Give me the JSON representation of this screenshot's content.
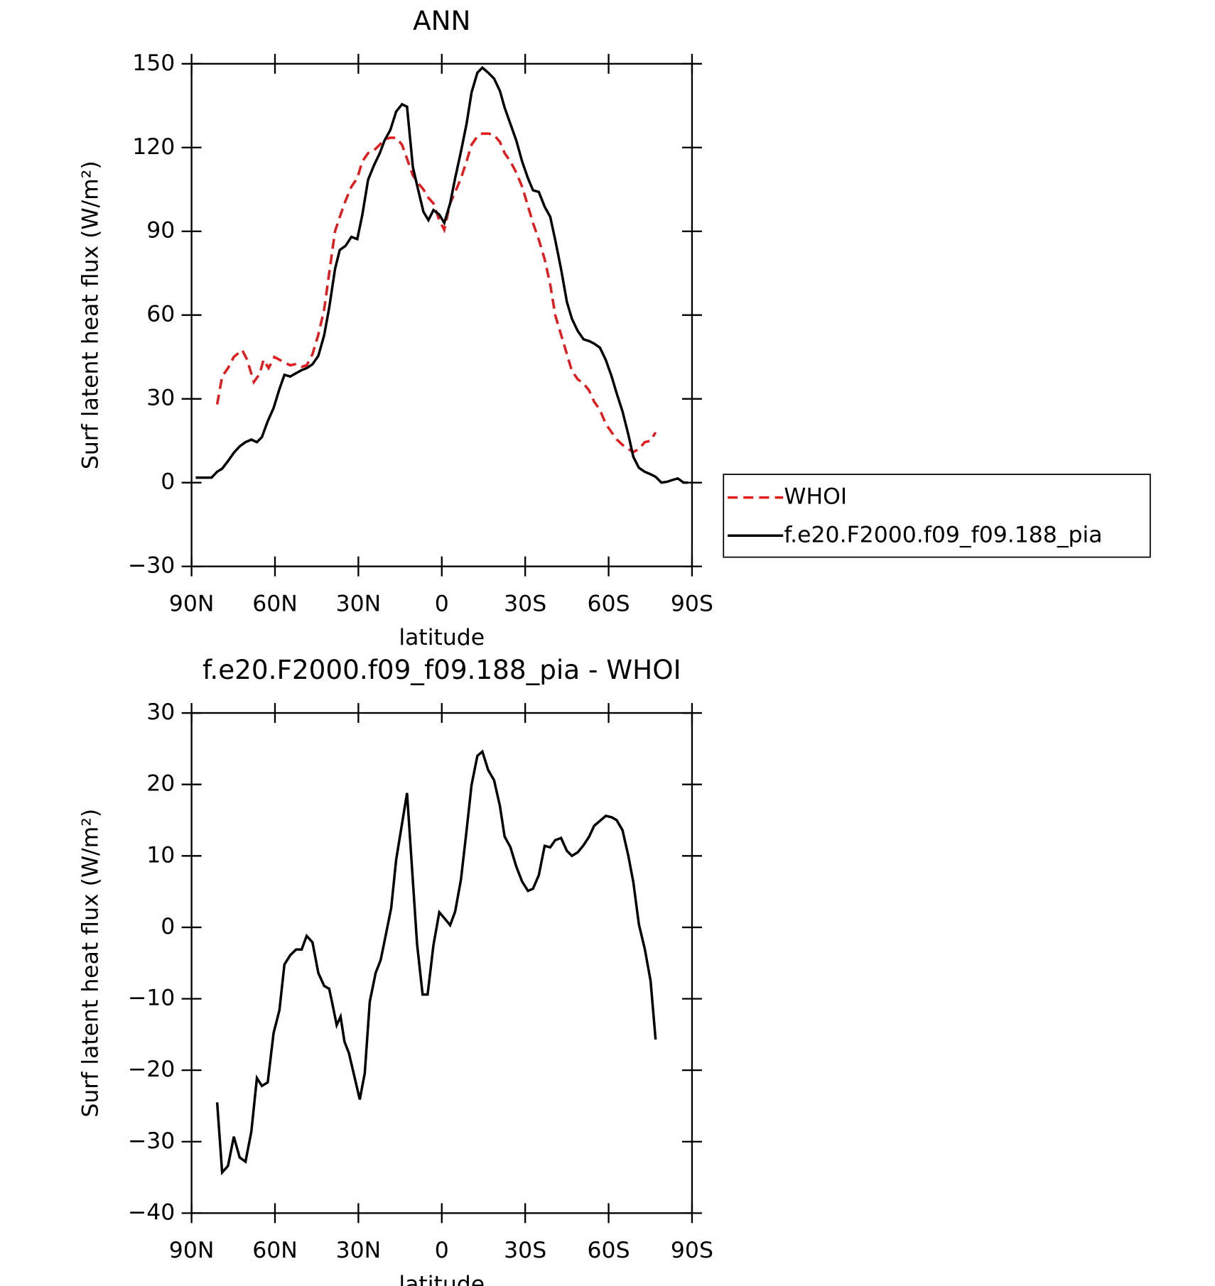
{
  "chart_data": [
    {
      "type": "line",
      "title": "ANN",
      "xlabel": "latitude",
      "ylabel": "Surf latent heat flux (W/m²)",
      "xlim": [
        90,
        -90
      ],
      "xticks": [
        {
          "value": 90,
          "label": "90N"
        },
        {
          "value": 60,
          "label": "60N"
        },
        {
          "value": 30,
          "label": "30N"
        },
        0,
        {
          "value": -30,
          "label": "30S"
        },
        {
          "value": -60,
          "label": "60S"
        },
        {
          "value": -90,
          "label": "90S"
        }
      ],
      "ylim": [
        -30,
        150
      ],
      "yticks": [
        {
          "value": -30,
          "label": "−30"
        },
        0,
        30,
        60,
        90,
        120,
        150
      ],
      "legend": "right",
      "series": [
        {
          "name": "WHOI",
          "color": "#e41a1c",
          "style": "dashed",
          "x": [
            80.8,
            79.0,
            76.9,
            74.8,
            71.8,
            70.0,
            67.6,
            65.5,
            64.1,
            62.3,
            60.2,
            57.5,
            54.5,
            52.4,
            50.4,
            48.6,
            46.5,
            44.4,
            42.3,
            40.5,
            38.4,
            36.4,
            34.6,
            32.5,
            30.4,
            28.6,
            26.5,
            24.4,
            22.3,
            20.6,
            18.5,
            16.4,
            14.3,
            12.5,
            10.4,
            8.3,
            6.6,
            4.8,
            3.0,
            0.9,
            -0.9,
            -3.0,
            -4.8,
            -6.9,
            -8.9,
            -10.7,
            -12.8,
            -14.6,
            -16.7,
            -18.8,
            -20.9,
            -22.6,
            -24.7,
            -26.8,
            -28.9,
            -31.0,
            -32.8,
            -34.9,
            -37.0,
            -39.0,
            -40.8,
            -42.9,
            -45.0,
            -46.8,
            -48.9,
            -51.0,
            -53.0,
            -54.8,
            -56.9,
            -59.0,
            -61.1,
            -62.9,
            -65.0,
            -67.1,
            -68.9,
            -70.9,
            -73.0,
            -75.1,
            -76.9
          ],
          "values": [
            28,
            38,
            41,
            45,
            47.5,
            44,
            36,
            39,
            44,
            41,
            45,
            43.5,
            42,
            42.5,
            41.5,
            42,
            46,
            53,
            62,
            75,
            90,
            96,
            101,
            106,
            109,
            115,
            118,
            119,
            121,
            123,
            123.5,
            123.5,
            121,
            116,
            110,
            107,
            105,
            102,
            100,
            94,
            90.5,
            100,
            104,
            109,
            115,
            121,
            124,
            125,
            125,
            124.5,
            122,
            118,
            115,
            111,
            106,
            99,
            93,
            87,
            80,
            71,
            60,
            53,
            46,
            40,
            37,
            35.5,
            33,
            29,
            26,
            21,
            18,
            15.5,
            13.5,
            12,
            11,
            12,
            14.5,
            15,
            18
          ]
        },
        {
          "name": "f.e20.F2000.f09_f09.188_pia",
          "color": "#000000",
          "style": "solid",
          "x": [
            88.5,
            82.8,
            80.8,
            79.0,
            76.9,
            74.8,
            72.7,
            70.6,
            68.5,
            66.5,
            64.7,
            62.6,
            60.5,
            58.4,
            56.6,
            54.5,
            52.4,
            50.4,
            48.6,
            46.5,
            44.4,
            42.3,
            40.5,
            38.4,
            36.7,
            34.6,
            32.5,
            30.4,
            28.6,
            26.5,
            24.4,
            22.3,
            20.6,
            18.5,
            16.4,
            14.3,
            12.5,
            10.4,
            8.3,
            6.6,
            4.8,
            3.0,
            0.9,
            -0.9,
            -3.0,
            -4.8,
            -6.9,
            -8.9,
            -10.7,
            -12.8,
            -14.6,
            -16.7,
            -18.8,
            -20.9,
            -22.6,
            -24.7,
            -26.8,
            -28.9,
            -31.0,
            -32.8,
            -34.9,
            -37.0,
            -39.0,
            -40.8,
            -42.9,
            -45.0,
            -46.8,
            -48.9,
            -51.0,
            -53.0,
            -54.8,
            -56.9,
            -59.0,
            -61.1,
            -62.9,
            -65.0,
            -67.1,
            -68.9,
            -70.9,
            -73.0,
            -75.1,
            -76.9,
            -79.0,
            -81.0,
            -82.8,
            -84.9,
            -87.0,
            -88.5
          ],
          "values": [
            1.8,
            1.8,
            3.9,
            5.0,
            7.7,
            10.7,
            13.0,
            14.5,
            15.4,
            14.5,
            16.3,
            22.0,
            26.7,
            33.5,
            38.6,
            38.0,
            39.2,
            40.3,
            41.0,
            42.4,
            45.4,
            52.8,
            62.6,
            76.5,
            83.3,
            84.8,
            88.0,
            87.2,
            95.8,
            108.5,
            113.6,
            118.0,
            122.5,
            126.3,
            132.9,
            135.5,
            134.6,
            113.0,
            104.0,
            97.0,
            94.0,
            97.6,
            96.0,
            93.0,
            100.0,
            109.0,
            118.6,
            128.4,
            139.7,
            146.8,
            148.6,
            146.8,
            144.7,
            140.3,
            134.3,
            128.4,
            122.5,
            115.0,
            109.0,
            104.7,
            104.1,
            98.8,
            95.2,
            86.9,
            76.5,
            64.7,
            58.7,
            54.3,
            51.3,
            50.7,
            49.8,
            48.3,
            43.9,
            38.0,
            32.0,
            25.5,
            17.2,
            9.2,
            5.3,
            3.9,
            3.0,
            2.1,
            0.0,
            0.3,
            0.9,
            1.5,
            0.0,
            0.0
          ]
        }
      ]
    },
    {
      "type": "line",
      "title": "f.e20.F2000.f09_f09.188_pia - WHOI",
      "xlabel": "latitude",
      "ylabel": "Surf latent heat flux (W/m²)",
      "xlim": [
        90,
        -90
      ],
      "xticks": [
        {
          "value": 90,
          "label": "90N"
        },
        {
          "value": 60,
          "label": "60N"
        },
        {
          "value": 30,
          "label": "30N"
        },
        0,
        {
          "value": -30,
          "label": "30S"
        },
        {
          "value": -60,
          "label": "60S"
        },
        {
          "value": -90,
          "label": "90S"
        }
      ],
      "ylim": [
        -40,
        30
      ],
      "yticks": [
        {
          "value": -40,
          "label": "−40"
        },
        {
          "value": -30,
          "label": "−30"
        },
        {
          "value": -20,
          "label": "−20"
        },
        {
          "value": -10,
          "label": "−10"
        },
        0,
        10,
        20,
        30
      ],
      "series": [
        {
          "color": "#000000",
          "style": "solid",
          "x": [
            80.8,
            79.0,
            76.9,
            74.8,
            72.7,
            70.6,
            68.5,
            66.5,
            64.7,
            62.6,
            60.5,
            58.4,
            56.6,
            54.5,
            52.4,
            50.4,
            48.6,
            46.5,
            44.4,
            42.3,
            40.5,
            39.3,
            37.8,
            36.4,
            35.0,
            33.4,
            31.3,
            29.5,
            27.7,
            25.9,
            23.8,
            22.0,
            20.0,
            18.2,
            16.4,
            14.3,
            12.5,
            8.9,
            6.9,
            5.1,
            3.0,
            0.9,
            -0.9,
            -3.0,
            -4.8,
            -6.9,
            -8.9,
            -10.7,
            -12.8,
            -14.6,
            -16.7,
            -18.8,
            -20.9,
            -22.6,
            -24.7,
            -26.8,
            -28.9,
            -31.0,
            -32.8,
            -34.9,
            -37.0,
            -39.0,
            -40.8,
            -42.9,
            -45.0,
            -46.8,
            -48.9,
            -51.0,
            -53.0,
            -54.8,
            -56.9,
            -59.0,
            -61.1,
            -62.9,
            -65.0,
            -67.1,
            -68.9,
            -70.9,
            -73.0,
            -75.1,
            -76.9
          ],
          "values": [
            -24.5,
            -34.3,
            -33.4,
            -29.3,
            -32.2,
            -32.8,
            -28.6,
            -21.1,
            -22.2,
            -21.7,
            -14.8,
            -11.6,
            -5.2,
            -3.9,
            -3.1,
            -3.1,
            -1.2,
            -2.1,
            -6.4,
            -8.2,
            -8.6,
            -10.8,
            -13.7,
            -12.5,
            -16.0,
            -17.6,
            -21.1,
            -24.1,
            -20.4,
            -10.4,
            -6.4,
            -4.6,
            -0.8,
            2.7,
            9.5,
            14.5,
            18.8,
            -2.3,
            -9.4,
            -9.4,
            -2.5,
            2.1,
            1.3,
            0.3,
            2.2,
            6.7,
            13.5,
            19.9,
            24.0,
            24.6,
            22.0,
            20.6,
            17.0,
            12.7,
            11.2,
            8.5,
            6.4,
            5.1,
            5.4,
            7.3,
            11.4,
            11.2,
            12.2,
            12.5,
            10.7,
            10.0,
            10.5,
            11.5,
            12.7,
            14.2,
            14.9,
            15.6,
            15.4,
            15.0,
            13.6,
            10.0,
            6.3,
            0.4,
            -3.0,
            -7.5,
            -15.7
          ]
        }
      ]
    }
  ]
}
